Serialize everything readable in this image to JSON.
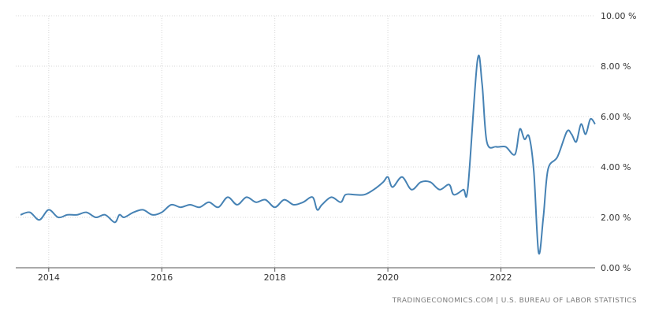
{
  "chart_data": {
    "type": "line",
    "title": "",
    "xlabel": "",
    "ylabel": "",
    "x_ticks": [
      "2014",
      "2016",
      "2018",
      "2020",
      "2022"
    ],
    "y_ticks": [
      "0.00 %",
      "2.00 %",
      "4.00 %",
      "6.00 %",
      "8.00 %",
      "10.00 %"
    ],
    "ylim": [
      0,
      10
    ],
    "xlim": [
      "2013-06",
      "2023-09"
    ],
    "grid": true,
    "legend": "none",
    "series": [
      {
        "color": "#4682b4",
        "points": [
          [
            "2013-07",
            2.1
          ],
          [
            "2013-09",
            2.2
          ],
          [
            "2013-11",
            1.9
          ],
          [
            "2014-01",
            2.3
          ],
          [
            "2014-03",
            2.0
          ],
          [
            "2014-05",
            2.1
          ],
          [
            "2014-07",
            2.1
          ],
          [
            "2014-09",
            2.2
          ],
          [
            "2014-11",
            2.0
          ],
          [
            "2015-01",
            2.1
          ],
          [
            "2015-03",
            1.8
          ],
          [
            "2015-04",
            2.1
          ],
          [
            "2015-05",
            2.0
          ],
          [
            "2015-07",
            2.2
          ],
          [
            "2015-09",
            2.3
          ],
          [
            "2015-11",
            2.1
          ],
          [
            "2016-01",
            2.2
          ],
          [
            "2016-03",
            2.5
          ],
          [
            "2016-05",
            2.4
          ],
          [
            "2016-07",
            2.5
          ],
          [
            "2016-09",
            2.4
          ],
          [
            "2016-11",
            2.6
          ],
          [
            "2017-01",
            2.4
          ],
          [
            "2017-03",
            2.8
          ],
          [
            "2017-05",
            2.5
          ],
          [
            "2017-07",
            2.8
          ],
          [
            "2017-09",
            2.6
          ],
          [
            "2017-11",
            2.7
          ],
          [
            "2018-01",
            2.4
          ],
          [
            "2018-03",
            2.7
          ],
          [
            "2018-05",
            2.5
          ],
          [
            "2018-07",
            2.6
          ],
          [
            "2018-09",
            2.8
          ],
          [
            "2018-10",
            2.3
          ],
          [
            "2018-11",
            2.5
          ],
          [
            "2019-01",
            2.8
          ],
          [
            "2019-03",
            2.6
          ],
          [
            "2019-04",
            2.9
          ],
          [
            "2019-06",
            2.9
          ],
          [
            "2019-08",
            2.9
          ],
          [
            "2019-10",
            3.1
          ],
          [
            "2019-12",
            3.4
          ],
          [
            "2020-01",
            3.6
          ],
          [
            "2020-02",
            3.2
          ],
          [
            "2020-04",
            3.6
          ],
          [
            "2020-06",
            3.1
          ],
          [
            "2020-08",
            3.4
          ],
          [
            "2020-10",
            3.4
          ],
          [
            "2020-12",
            3.1
          ],
          [
            "2021-02",
            3.3
          ],
          [
            "2021-03",
            2.9
          ],
          [
            "2021-05",
            3.1
          ],
          [
            "2021-06",
            3.2
          ],
          [
            "2021-08",
            8.2
          ],
          [
            "2021-09",
            7.3
          ],
          [
            "2021-10",
            5.0
          ],
          [
            "2021-12",
            4.8
          ],
          [
            "2022-02",
            4.8
          ],
          [
            "2022-04",
            4.5
          ],
          [
            "2022-05",
            5.5
          ],
          [
            "2022-06",
            5.1
          ],
          [
            "2022-07",
            5.2
          ],
          [
            "2022-08",
            3.8
          ],
          [
            "2022-09",
            0.6
          ],
          [
            "2022-10",
            2.0
          ],
          [
            "2022-11",
            3.9
          ],
          [
            "2023-01",
            4.4
          ],
          [
            "2023-03",
            5.4
          ],
          [
            "2023-04",
            5.3
          ],
          [
            "2023-05",
            5.0
          ],
          [
            "2023-06",
            5.7
          ],
          [
            "2023-07",
            5.3
          ],
          [
            "2023-08",
            5.9
          ],
          [
            "2023-09",
            5.7
          ]
        ]
      }
    ],
    "source": "TRADINGECONOMICS.COM  |  U.S. BUREAU OF LABOR STATISTICS"
  }
}
